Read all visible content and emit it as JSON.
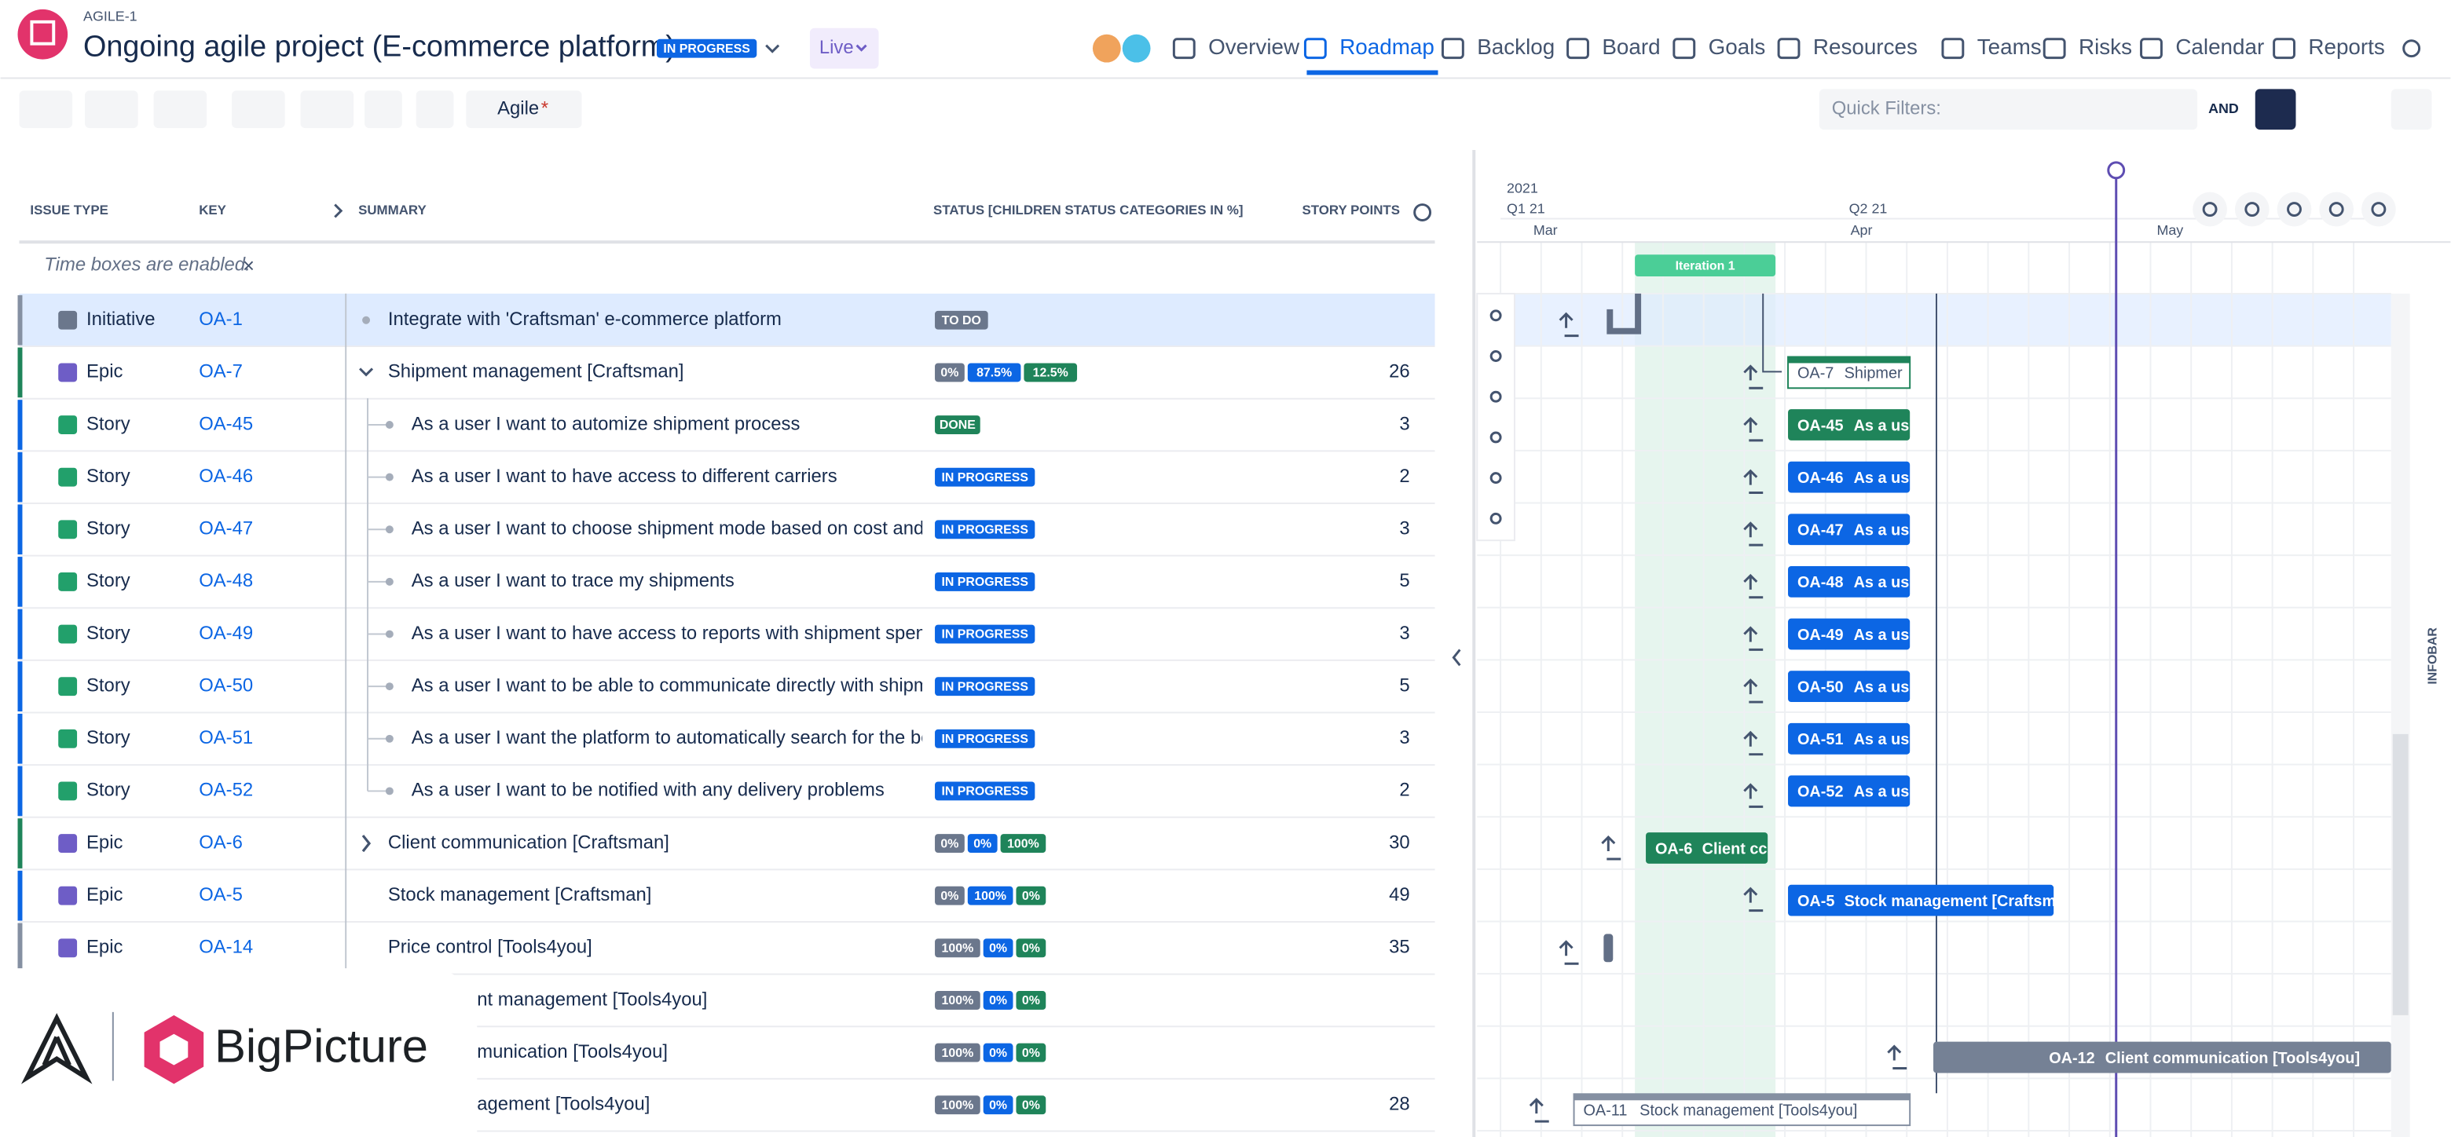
{
  "header": {
    "key": "AGILE-1",
    "title": "Ongoing agile project (E-commerce platform)",
    "status": "IN PROGRESS",
    "mode": "Live"
  },
  "nav": [
    "Overview",
    "Roadmap",
    "Backlog",
    "Board",
    "Goals",
    "Resources",
    "Teams",
    "Risks",
    "Calendar",
    "Reports"
  ],
  "toolbar": {
    "view": "Agile",
    "modified": "*",
    "quick_filters": "Quick Filters:",
    "and": "AND"
  },
  "columns": [
    "ISSUE TYPE",
    "KEY",
    "SUMMARY",
    "STATUS [CHILDREN STATUS CATEGORIES IN %]",
    "STORY POINTS"
  ],
  "notice": "Time boxes are enabled.",
  "rows": [
    {
      "type": "Initiative",
      "key": "OA-1",
      "summary": "Integrate with 'Craftsman' e-commerce platform",
      "status": [
        {
          "text": "TO DO",
          "color": "#6b778c"
        }
      ],
      "accent": "#8590a2",
      "icon": "#6b778c"
    },
    {
      "type": "Epic",
      "key": "OA-7",
      "summary": "Shipment management [Craftsman]",
      "status": [
        {
          "text": "0%",
          "color": "#6b778c"
        },
        {
          "text": "87.5%",
          "color": "#0c66e4"
        },
        {
          "text": "12.5%",
          "color": "#1f845a"
        }
      ],
      "points": "26",
      "accent": "#1f845a",
      "icon": "#6e5dc6"
    },
    {
      "type": "Story",
      "key": "OA-45",
      "summary": "As a user I want to automize shipment process",
      "status": [
        {
          "text": "DONE",
          "color": "#1f845a"
        }
      ],
      "points": "3",
      "accent": "#0c66e4",
      "icon": "#22a06b"
    },
    {
      "type": "Story",
      "key": "OA-46",
      "summary": "As a user I want to have access to different carriers",
      "status": [
        {
          "text": "IN PROGRESS",
          "color": "#0c66e4"
        }
      ],
      "points": "2",
      "accent": "#0c66e4",
      "icon": "#22a06b"
    },
    {
      "type": "Story",
      "key": "OA-47",
      "summary": "As a user I want to choose shipment mode based on cost and de",
      "status": [
        {
          "text": "IN PROGRESS",
          "color": "#0c66e4"
        }
      ],
      "points": "3",
      "accent": "#0c66e4",
      "icon": "#22a06b"
    },
    {
      "type": "Story",
      "key": "OA-48",
      "summary": "As a user I want to trace my shipments",
      "status": [
        {
          "text": "IN PROGRESS",
          "color": "#0c66e4"
        }
      ],
      "points": "5",
      "accent": "#0c66e4",
      "icon": "#22a06b"
    },
    {
      "type": "Story",
      "key": "OA-49",
      "summary": "As a user I want to have access to reports with shipment spendi",
      "status": [
        {
          "text": "IN PROGRESS",
          "color": "#0c66e4"
        }
      ],
      "points": "3",
      "accent": "#0c66e4",
      "icon": "#22a06b"
    },
    {
      "type": "Story",
      "key": "OA-50",
      "summary": "As a user I want to be able to communicate directly with shipme",
      "status": [
        {
          "text": "IN PROGRESS",
          "color": "#0c66e4"
        }
      ],
      "points": "5",
      "accent": "#0c66e4",
      "icon": "#22a06b"
    },
    {
      "type": "Story",
      "key": "OA-51",
      "summary": "As a user I want the platform to automatically search for the bes",
      "status": [
        {
          "text": "IN PROGRESS",
          "color": "#0c66e4"
        }
      ],
      "points": "3",
      "accent": "#0c66e4",
      "icon": "#22a06b"
    },
    {
      "type": "Story",
      "key": "OA-52",
      "summary": "As a user I want to be notified with any delivery problems",
      "status": [
        {
          "text": "IN PROGRESS",
          "color": "#0c66e4"
        }
      ],
      "points": "2",
      "accent": "#0c66e4",
      "icon": "#22a06b"
    },
    {
      "type": "Epic",
      "key": "OA-6",
      "summary": "Client communication [Craftsman]",
      "status": [
        {
          "text": "0%",
          "color": "#6b778c"
        },
        {
          "text": "0%",
          "color": "#0c66e4"
        },
        {
          "text": "100%",
          "color": "#1f845a"
        }
      ],
      "points": "30",
      "accent": "#1f845a",
      "icon": "#6e5dc6"
    },
    {
      "type": "Epic",
      "key": "OA-5",
      "summary": "Stock management [Craftsman]",
      "status": [
        {
          "text": "0%",
          "color": "#6b778c"
        },
        {
          "text": "100%",
          "color": "#0c66e4"
        },
        {
          "text": "0%",
          "color": "#1f845a"
        }
      ],
      "points": "49",
      "accent": "#0c66e4",
      "icon": "#6e5dc6"
    },
    {
      "type": "Epic",
      "key": "OA-14",
      "summary": "Price control [Tools4you]",
      "status": [
        {
          "text": "100%",
          "color": "#6b778c"
        },
        {
          "text": "0%",
          "color": "#0c66e4"
        },
        {
          "text": "0%",
          "color": "#1f845a"
        }
      ],
      "points": "35",
      "accent": "#8590a2",
      "icon": "#6e5dc6"
    },
    {
      "summary": "nt management [Tools4you]",
      "status": [
        {
          "text": "100%",
          "color": "#6b778c"
        },
        {
          "text": "0%",
          "color": "#0c66e4"
        },
        {
          "text": "0%",
          "color": "#1f845a"
        }
      ]
    },
    {
      "summary": "munication [Tools4you]",
      "status": [
        {
          "text": "100%",
          "color": "#6b778c"
        },
        {
          "text": "0%",
          "color": "#0c66e4"
        },
        {
          "text": "0%",
          "color": "#1f845a"
        }
      ]
    },
    {
      "summary": "agement [Tools4you]",
      "status": [
        {
          "text": "100%",
          "color": "#6b778c"
        },
        {
          "text": "0%",
          "color": "#0c66e4"
        },
        {
          "text": "0%",
          "color": "#1f845a"
        }
      ],
      "points": "28"
    }
  ],
  "timeline": {
    "year": "2021",
    "quarters": [
      "Q1 21",
      "Q2 21"
    ],
    "months": [
      "Mar",
      "Apr",
      "May"
    ],
    "iteration": "Iteration 1",
    "infobar": "INFOBAR"
  },
  "bars": [
    {
      "key": "OA-7",
      "text": "Shipmer",
      "color": "#1f845a",
      "outline": true
    },
    {
      "key": "OA-45",
      "text": "As a us",
      "color": "#1f845a"
    },
    {
      "key": "OA-46",
      "text": "As a us",
      "color": "#0c66e4"
    },
    {
      "key": "OA-47",
      "text": "As a us",
      "color": "#0c66e4"
    },
    {
      "key": "OA-48",
      "text": "As a us",
      "color": "#0c66e4"
    },
    {
      "key": "OA-49",
      "text": "As a us",
      "color": "#0c66e4"
    },
    {
      "key": "OA-50",
      "text": "As a us",
      "color": "#0c66e4"
    },
    {
      "key": "OA-51",
      "text": "As a us",
      "color": "#0c66e4"
    },
    {
      "key": "OA-52",
      "text": "As a us",
      "color": "#0c66e4"
    },
    {
      "key": "OA-6",
      "text": "Client cc",
      "color": "#1f845a"
    },
    {
      "key": "OA-5",
      "text": "Stock management [Craftsma",
      "color": "#0c66e4"
    },
    {
      "key": "OA-12",
      "text": "Client communication [Tools4you]",
      "color": "#758195"
    },
    {
      "key": "OA-11",
      "text": "Stock management [Tools4you]",
      "color": "#8590a2",
      "outline": true
    }
  ],
  "brand": "BigPicture"
}
